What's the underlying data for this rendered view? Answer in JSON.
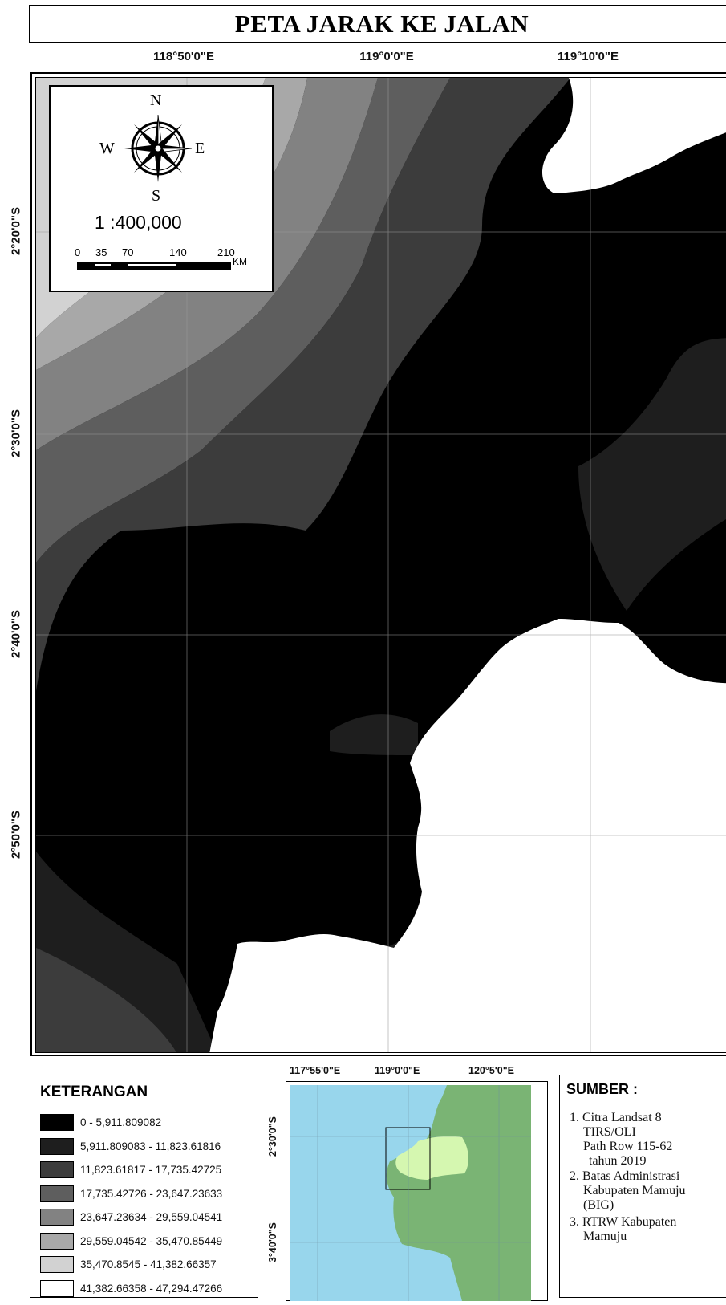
{
  "title": "PETA JARAK KE JALAN",
  "coords_top": [
    "118°50'0\"E",
    "119°0'0\"E",
    "119°10'0\"E"
  ],
  "coords_left": [
    "2°20'0\"S",
    "2°30'0\"S",
    "2°40'0\"S",
    "2°50'0\"S"
  ],
  "north_arrow": {
    "n": "N",
    "s": "S",
    "e": "E",
    "w": "W",
    "icon": "compass-rose-icon"
  },
  "scale": {
    "ratio": "1 :400,000",
    "ticks": [
      "0",
      "35",
      "70",
      "140",
      "210"
    ],
    "unit": "KM"
  },
  "legend": {
    "title": "KETERANGAN",
    "items": [
      {
        "label": "0 - 5,911.809082",
        "color": "#000000"
      },
      {
        "label": "5,911.809083 - 11,823.61816",
        "color": "#1e1e1e"
      },
      {
        "label": "11,823.61817 - 17,735.42725",
        "color": "#3c3c3c"
      },
      {
        "label": "17,735.42726 - 23,647.23633",
        "color": "#5e5e5e"
      },
      {
        "label": "23,647.23634 - 29,559.04541",
        "color": "#828282"
      },
      {
        "label": "29,559.04542 - 35,470.85449",
        "color": "#a8a8a8"
      },
      {
        "label": "35,470.8545 - 41,382.66357",
        "color": "#d2d2d2"
      },
      {
        "label": "41,382.66358 - 47,294.47266",
        "color": "#ffffff"
      }
    ]
  },
  "locator": {
    "coords_top": [
      "117°55'0\"E",
      "119°0'0\"E",
      "120°5'0\"E"
    ],
    "coords_left": [
      "2°30'0\"S",
      "3°40'0\"S"
    ],
    "colors": {
      "sea": "#98d6ec",
      "land": "#7ab474",
      "highlight": "#d5f7b0"
    }
  },
  "sources": {
    "title": "SUMBER :",
    "items": [
      [
        "1. Citra Landsat 8",
        "TIRS/OLI",
        "Path Row 115-62",
        "tahun 2019"
      ],
      [
        "2. Batas Administrasi",
        "Kabupaten Mamuju",
        "(BIG)"
      ],
      [
        "3. RTRW Kabupaten",
        "Mamuju"
      ]
    ]
  }
}
